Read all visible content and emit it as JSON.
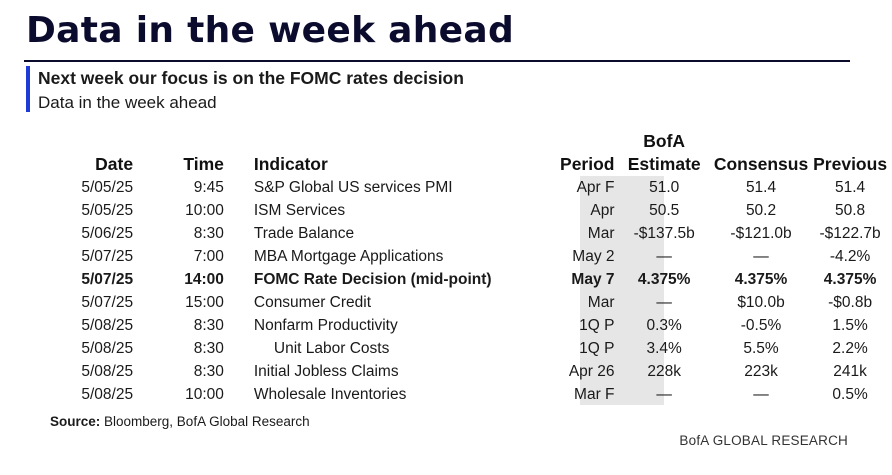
{
  "title": "Data in the week ahead",
  "subtitle": "Next week our focus is on the FOMC rates decision",
  "subtitle2": "Data in the week ahead",
  "columns": {
    "date": "Date",
    "time": "Time",
    "indicator": "Indicator",
    "period": "Period",
    "estimate_line1": "BofA",
    "estimate_line2": "Estimate",
    "consensus": "Consensus",
    "previous": "Previous"
  },
  "rows": [
    {
      "date": "5/05/25",
      "time": "9:45",
      "indicator": "S&P Global US services PMI",
      "period": "Apr F",
      "estimate": "51.0",
      "consensus": "51.4",
      "previous": "51.4"
    },
    {
      "date": "5/05/25",
      "time": "10:00",
      "indicator": "ISM Services",
      "period": "Apr",
      "estimate": "50.5",
      "consensus": "50.2",
      "previous": "50.8"
    },
    {
      "date": "5/06/25",
      "time": "8:30",
      "indicator": "Trade Balance",
      "period": "Mar",
      "estimate": "-$137.5b",
      "consensus": "-$121.0b",
      "previous": "-$122.7b"
    },
    {
      "date": "5/07/25",
      "time": "7:00",
      "indicator": "MBA Mortgage Applications",
      "period": "May 2",
      "estimate": "—",
      "consensus": "—",
      "previous": "-4.2%"
    },
    {
      "date": "5/07/25",
      "time": "14:00",
      "indicator": "FOMC Rate Decision (mid-point)",
      "period": "May 7",
      "estimate": "4.375%",
      "consensus": "4.375%",
      "previous": "4.375%"
    },
    {
      "date": "5/07/25",
      "time": "15:00",
      "indicator": "Consumer Credit",
      "period": "Mar",
      "estimate": "—",
      "consensus": "$10.0b",
      "previous": "-$0.8b"
    },
    {
      "date": "5/08/25",
      "time": "8:30",
      "indicator": "Nonfarm Productivity",
      "period": "1Q P",
      "estimate": "0.3%",
      "consensus": "-0.5%",
      "previous": "1.5%"
    },
    {
      "date": "5/08/25",
      "time": "8:30",
      "indicator": "Unit Labor Costs",
      "period": "1Q P",
      "estimate": "3.4%",
      "consensus": "5.5%",
      "previous": "2.2%"
    },
    {
      "date": "5/08/25",
      "time": "8:30",
      "indicator": "Initial Jobless Claims",
      "period": "Apr 26",
      "estimate": "228k",
      "consensus": "223k",
      "previous": "241k"
    },
    {
      "date": "5/08/25",
      "time": "10:00",
      "indicator": "Wholesale Inventories",
      "period": "Mar F",
      "estimate": "—",
      "consensus": "—",
      "previous": "0.5%"
    }
  ],
  "source_label": "Source:",
  "source_text": " Bloomberg, BofA Global Research",
  "brand": "BofA GLOBAL RESEARCH"
}
